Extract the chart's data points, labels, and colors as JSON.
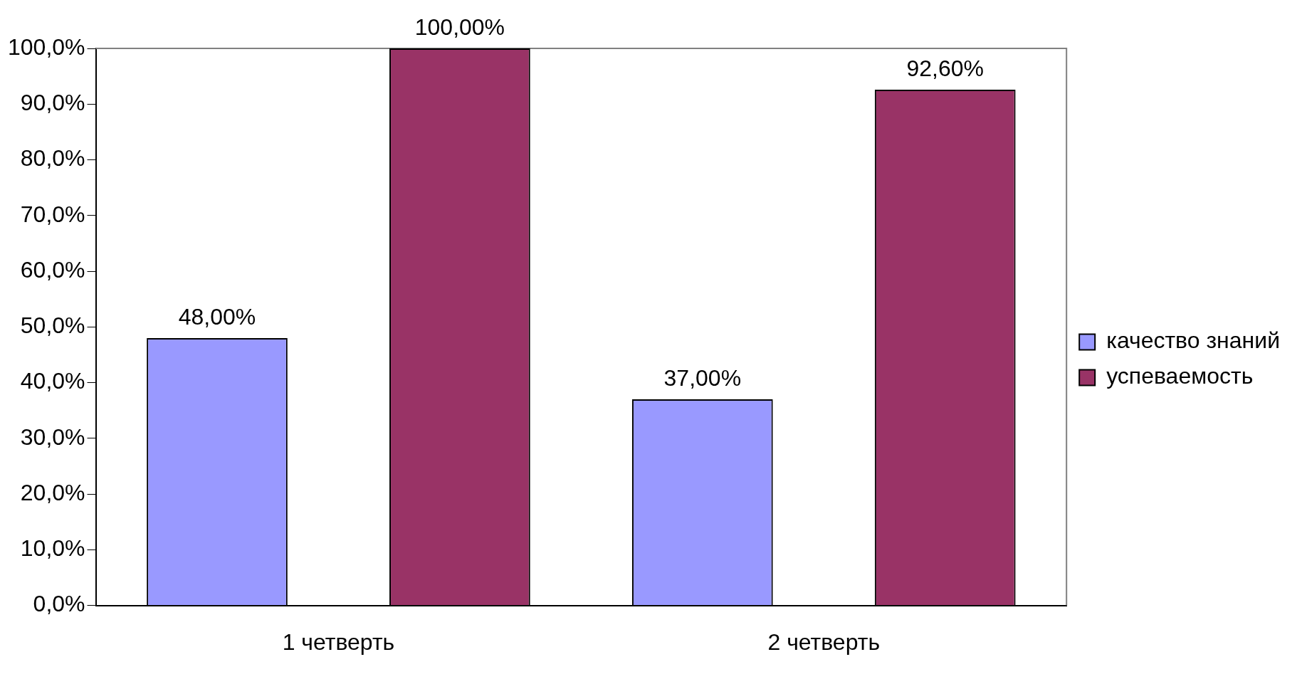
{
  "chart_data": {
    "type": "bar",
    "categories": [
      "1 четверть",
      "2 четверть"
    ],
    "series": [
      {
        "name": "качество знаний",
        "color": "#9999ff",
        "values": [
          48,
          37
        ],
        "value_labels": [
          "48,00%",
          "37,00%"
        ]
      },
      {
        "name": "успеваемость",
        "color": "#993366",
        "values": [
          100,
          92.6
        ],
        "value_labels": [
          "100,00%",
          "92,60%"
        ]
      }
    ],
    "ylim": [
      0,
      100
    ],
    "yticks": [
      {
        "value": 0,
        "label": "0,0%"
      },
      {
        "value": 10,
        "label": "10,0%"
      },
      {
        "value": 20,
        "label": "20,0%"
      },
      {
        "value": 30,
        "label": "30,0%"
      },
      {
        "value": 40,
        "label": "40,0%"
      },
      {
        "value": 50,
        "label": "50,0%"
      },
      {
        "value": 60,
        "label": "60,0%"
      },
      {
        "value": 70,
        "label": "70,0%"
      },
      {
        "value": 80,
        "label": "80,0%"
      },
      {
        "value": 90,
        "label": "90,0%"
      },
      {
        "value": 100,
        "label": "100,0%"
      }
    ],
    "grid": false,
    "legend": "right"
  }
}
